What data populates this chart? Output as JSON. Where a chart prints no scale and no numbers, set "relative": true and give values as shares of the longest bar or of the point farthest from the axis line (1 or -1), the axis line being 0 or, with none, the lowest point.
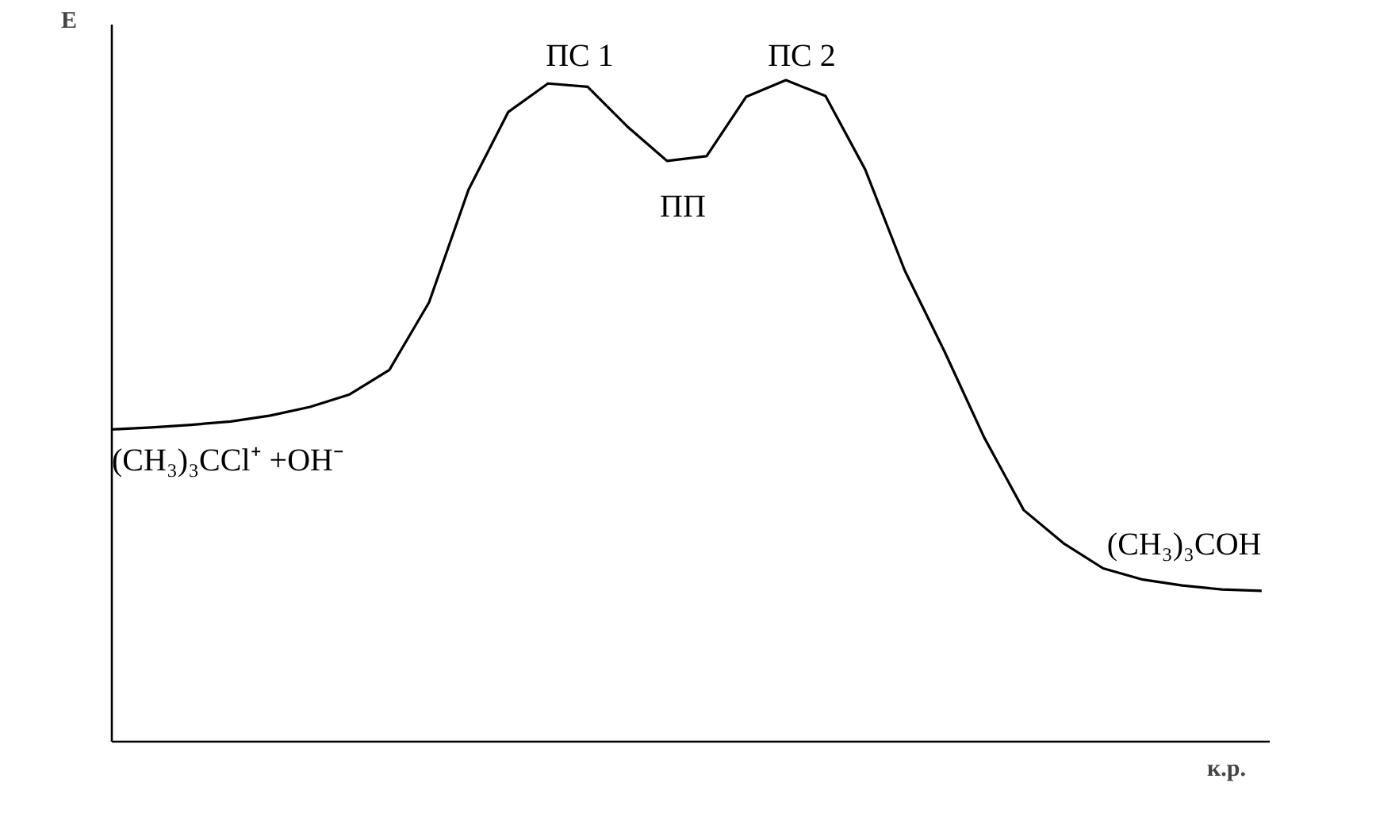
{
  "chart_data": {
    "type": "line",
    "relative": true,
    "xlabel": "к.р.",
    "ylabel": "E",
    "color": "#000000",
    "marker": "none",
    "line_style": "solid",
    "categories": [
      null,
      null,
      null,
      null,
      null,
      null,
      null,
      null,
      null,
      null,
      null,
      null,
      null,
      null,
      null,
      null,
      null,
      null,
      null,
      null,
      null,
      null,
      null,
      null,
      null,
      null,
      null,
      null,
      null,
      null
    ],
    "values": [
      0.472,
      0.475,
      0.479,
      0.484,
      0.493,
      0.506,
      0.525,
      0.562,
      0.664,
      0.835,
      0.952,
      0.995,
      0.99,
      0.93,
      0.878,
      0.885,
      0.975,
      1.0,
      0.976,
      0.865,
      0.712,
      0.59,
      0.46,
      0.35,
      0.3,
      0.262,
      0.245,
      0.236,
      0.23,
      0.228
    ],
    "annotations": [
      "ПС 1",
      "ПП",
      "ПС 2",
      "(CH₃)₃CCl⁺ +OH⁻",
      "(CH₃)₃COH"
    ]
  }
}
